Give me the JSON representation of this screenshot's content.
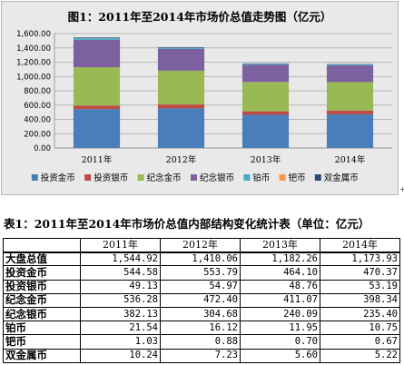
{
  "chart_title": "图1：2011年至2014年市场价总值走势图（亿元）",
  "chart_data": {
    "type": "bar",
    "stacked": true,
    "title": "图1：2011年至2014年市场价总值走势图（亿元）",
    "categories": [
      "2011年",
      "2012年",
      "2013年",
      "2014年"
    ],
    "ylim": [
      0,
      1600
    ],
    "yticks": [
      "0.00",
      "200.00",
      "400.00",
      "600.00",
      "800.00",
      "1,000.00",
      "1,200.00",
      "1,400.00",
      "1,600.00"
    ],
    "ytick_values": [
      0,
      200,
      400,
      600,
      800,
      1000,
      1200,
      1400,
      1600
    ],
    "grid": true,
    "legend_position": "bottom",
    "series": [
      {
        "name": "投资金币",
        "color": "#4a7ebb",
        "values": [
          544.58,
          553.79,
          464.1,
          470.37
        ]
      },
      {
        "name": "投资银币",
        "color": "#be4b48",
        "values": [
          49.13,
          54.97,
          48.76,
          53.19
        ]
      },
      {
        "name": "纪念金币",
        "color": "#98b954",
        "values": [
          536.28,
          472.4,
          411.07,
          398.34
        ]
      },
      {
        "name": "纪念银币",
        "color": "#7d60a0",
        "values": [
          382.13,
          304.68,
          240.09,
          235.4
        ]
      },
      {
        "name": "铂币",
        "color": "#46aac5",
        "values": [
          21.54,
          16.12,
          11.95,
          10.75
        ]
      },
      {
        "name": "钯币",
        "color": "#f79646",
        "values": [
          1.03,
          0.88,
          0.7,
          0.67
        ]
      },
      {
        "name": "双金属币",
        "color": "#2c4d75",
        "values": [
          10.24,
          7.23,
          5.6,
          5.22
        ]
      }
    ]
  },
  "side_mark": "+",
  "table_title": "表1：2011年至2014年市场价总值内部结构变化统计表（单位：亿元）",
  "table": {
    "columns": [
      "2011年",
      "2012年",
      "2013年",
      "2014年"
    ],
    "rows": [
      {
        "label": "大盘总值",
        "values": [
          "1,544.92",
          "1,410.06",
          "1,182.26",
          "1,173.93"
        ]
      },
      {
        "label": "投资金币",
        "values": [
          "544.58",
          "553.79",
          "464.10",
          "470.37"
        ]
      },
      {
        "label": "投资银币",
        "values": [
          "49.13",
          "54.97",
          "48.76",
          "53.19"
        ]
      },
      {
        "label": "纪念金币",
        "values": [
          "536.28",
          "472.40",
          "411.07",
          "398.34"
        ]
      },
      {
        "label": "纪念银币",
        "values": [
          "382.13",
          "304.68",
          "240.09",
          "235.40"
        ]
      },
      {
        "label": "铂币",
        "values": [
          "21.54",
          "16.12",
          "11.95",
          "10.75"
        ]
      },
      {
        "label": "钯币",
        "values": [
          "1.03",
          "0.88",
          "0.70",
          "0.67"
        ]
      },
      {
        "label": "双金属币",
        "values": [
          "10.24",
          "7.23",
          "5.60",
          "5.22"
        ]
      }
    ]
  }
}
